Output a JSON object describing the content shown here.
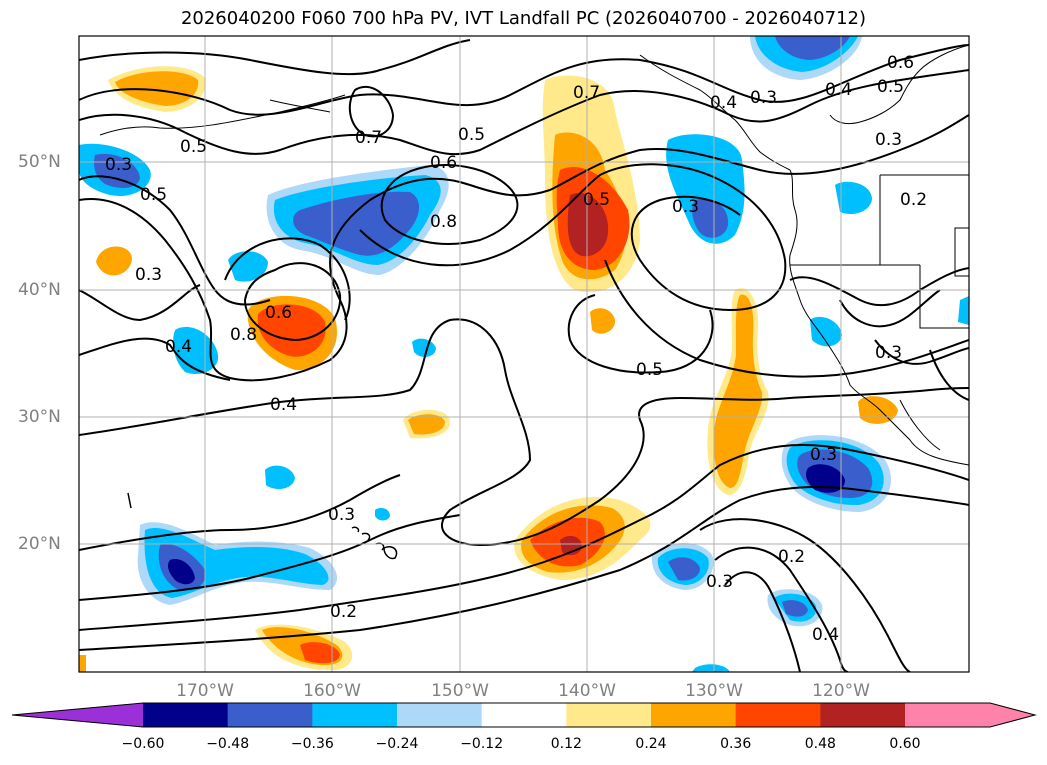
{
  "title": "2026040200 F060 700 hPa PV, IVT Landfall PC (2026040700 - 2026040712)",
  "lat_labels": [
    "50°N",
    "40°N",
    "30°N",
    "20°N"
  ],
  "lon_labels": [
    "170°W",
    "160°W",
    "150°W",
    "140°W",
    "130°W",
    "120°W"
  ],
  "colorbar": {
    "ticks": [
      "−0.60",
      "−0.48",
      "−0.36",
      "−0.24",
      "−0.12",
      "0.12",
      "0.24",
      "0.36",
      "0.48",
      "0.60"
    ],
    "colors": [
      "#9b30d9",
      "#00008b",
      "#3a5fcd",
      "#00bfff",
      "#add8f7",
      "#ffffff",
      "#ffe98a",
      "#ffa500",
      "#ff4500",
      "#b22222",
      "#ff82ab"
    ]
  },
  "contour_labels": [
    "0.7",
    "0.6",
    "0.5",
    "0.4",
    "0.3",
    "0.2",
    "0.8",
    "0.6",
    "0.5",
    "0.7",
    "0.5",
    "0.4",
    "0.3",
    "0.5",
    "0.6",
    "0.3",
    "0.3",
    "0.3",
    "0.5",
    "0.8",
    "0.4",
    "0.4",
    "0.3",
    "0.3",
    "0.2",
    "0.3",
    "0.4",
    "0.2",
    "0.5",
    "0.3"
  ]
}
